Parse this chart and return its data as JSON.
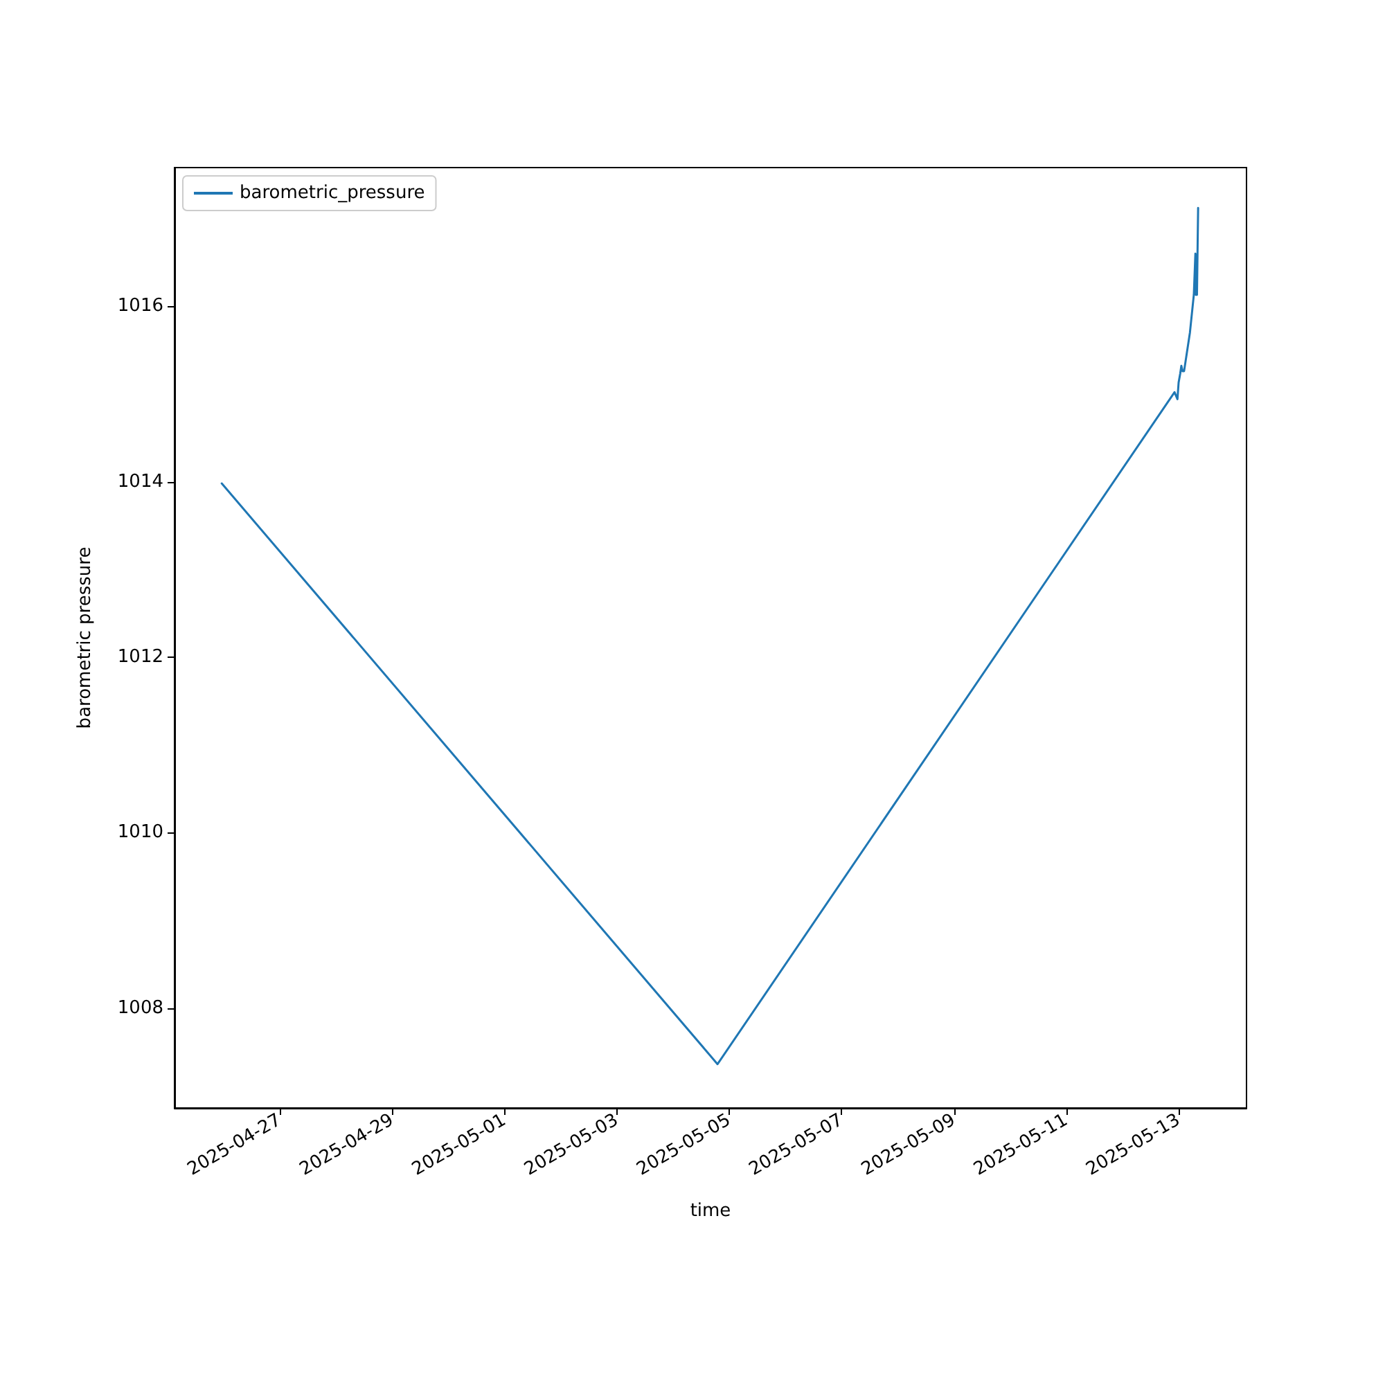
{
  "chart_data": {
    "type": "line",
    "xlabel": "time",
    "ylabel": "barometric pressure",
    "x": [
      "2025-04-25T23:10",
      "2025-05-04T19:00",
      "2025-05-12T22:15",
      "2025-05-12T23:30",
      "2025-05-13T00:00",
      "2025-05-13T00:40",
      "2025-05-13T01:10",
      "2025-05-13T01:40",
      "2025-05-13T02:20",
      "2025-05-13T04:50",
      "2025-05-13T06:30",
      "2025-05-13T07:10",
      "2025-05-13T07:20",
      "2025-05-13T07:50",
      "2025-05-13T08:20"
    ],
    "series": [
      {
        "name": "barometric_pressure",
        "color": "#1f77b4",
        "values": [
          1013.98,
          1007.36,
          1015.02,
          1014.94,
          1015.13,
          1015.23,
          1015.32,
          1015.26,
          1015.26,
          1015.7,
          1016.13,
          1016.6,
          1016.13,
          1016.13,
          1017.12
        ]
      }
    ],
    "xlim": [
      "2025-04-25T03:00",
      "2025-05-14T05:00"
    ],
    "xticks": [
      "2025-04-27",
      "2025-04-29",
      "2025-05-01",
      "2025-05-03",
      "2025-05-05",
      "2025-05-07",
      "2025-05-09",
      "2025-05-11",
      "2025-05-13"
    ],
    "ylim": [
      1006.86,
      1017.58
    ],
    "yticks": [
      1008,
      1010,
      1012,
      1014,
      1016
    ],
    "grid": false,
    "legend": "top left",
    "marker": "none",
    "line_style": "solid"
  }
}
